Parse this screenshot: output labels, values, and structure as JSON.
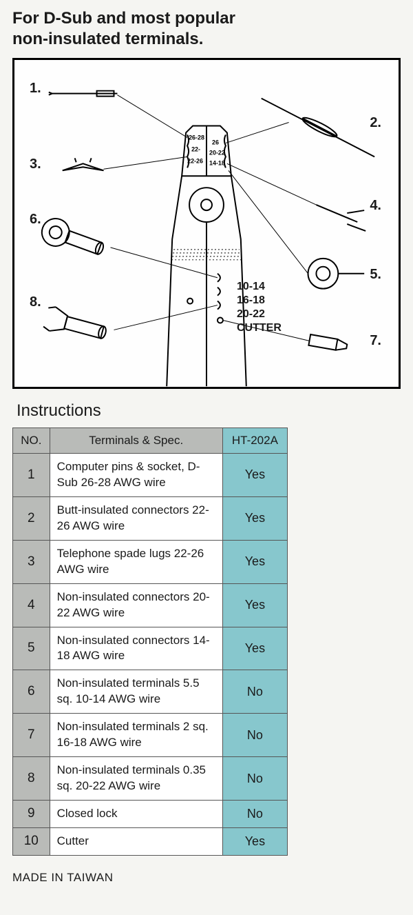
{
  "heading_line1": "For D-Sub and most popular",
  "heading_line2": "non-insulated terminals.",
  "diagram": {
    "callouts": [
      "1.",
      "2.",
      "3.",
      "4.",
      "5.",
      "6.",
      "7.",
      "8."
    ],
    "tool_labels": [
      "10-14",
      "16-18",
      "20-22",
      "CUTTER"
    ],
    "jaw_labels": [
      "26-28",
      "26",
      "22-",
      "20-22",
      "22-26",
      "14-18"
    ]
  },
  "instructions_title": "Instructions",
  "table": {
    "columns": [
      "NO.",
      "Terminals & Spec.",
      "HT-202A"
    ],
    "header_bg": [
      "#b9bbb8",
      "#b9bbb8",
      "#87c7cd"
    ],
    "no_col_bg": "#b9bbb8",
    "spec_col_bg": "#ffffff",
    "yn_col_bg": "#87c7cd",
    "border_color": "#555555",
    "rows": [
      {
        "no": "1",
        "spec": "Computer pins & socket, D-Sub 26-28 AWG wire",
        "yn": "Yes"
      },
      {
        "no": "2",
        "spec": "Butt-insulated connectors 22-26 AWG wire",
        "yn": "Yes"
      },
      {
        "no": "3",
        "spec": "Telephone spade lugs 22-26 AWG wire",
        "yn": "Yes"
      },
      {
        "no": "4",
        "spec": "Non-insulated connectors 20-22 AWG wire",
        "yn": "Yes"
      },
      {
        "no": "5",
        "spec": "Non-insulated connectors 14-18 AWG wire",
        "yn": "Yes"
      },
      {
        "no": "6",
        "spec": "Non-insulated terminals 5.5 sq. 10-14 AWG wire",
        "yn": "No"
      },
      {
        "no": "7",
        "spec": "Non-insulated terminals 2 sq. 16-18 AWG wire",
        "yn": "No"
      },
      {
        "no": "8",
        "spec": "Non-insulated terminals 0.35 sq. 20-22 AWG wire",
        "yn": "No"
      },
      {
        "no": "9",
        "spec": "Closed lock",
        "yn": "No"
      },
      {
        "no": "10",
        "spec": "Cutter",
        "yn": "Yes"
      }
    ]
  },
  "footer": "MADE IN TAIWAN",
  "colors": {
    "page_bg": "#f5f5f2",
    "text": "#1a1a1a",
    "diagram_border": "#000000",
    "diagram_bg": "#fefefe"
  }
}
